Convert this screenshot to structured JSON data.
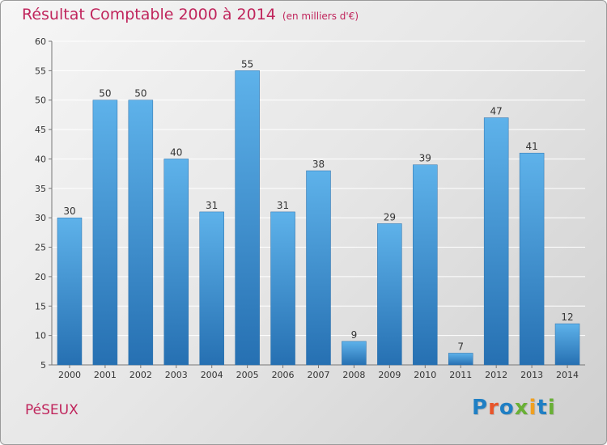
{
  "header": {
    "title": "Résultat Comptable 2000 à 2014",
    "subtitle": "(en milliers d'€)"
  },
  "footer": {
    "place": "PéSEUX",
    "brand": "Proxiti"
  },
  "colors": {
    "title": "#c0255c",
    "bar_top": "#5eb2ea",
    "bar_bottom": "#2670b2",
    "brand_letters": [
      "#1f7fc4",
      "#e8552a",
      "#1f7fc4",
      "#69b036",
      "#f0a020",
      "#1f7fc4",
      "#69b036"
    ]
  },
  "chart_data": {
    "type": "bar",
    "title": "Résultat Comptable 2000 à 2014",
    "subtitle": "(en milliers d'€)",
    "xlabel": "",
    "ylabel": "",
    "categories": [
      "2000",
      "2001",
      "2002",
      "2003",
      "2004",
      "2005",
      "2006",
      "2007",
      "2008",
      "2009",
      "2010",
      "2011",
      "2012",
      "2013",
      "2014"
    ],
    "values": [
      30,
      50,
      50,
      40,
      31,
      55,
      31,
      38,
      9,
      29,
      39,
      7,
      47,
      41,
      12
    ],
    "ylim": [
      5,
      60
    ],
    "yticks": [
      5,
      10,
      15,
      20,
      25,
      30,
      35,
      40,
      45,
      50,
      55,
      60
    ],
    "grid": true,
    "legend": "none"
  }
}
